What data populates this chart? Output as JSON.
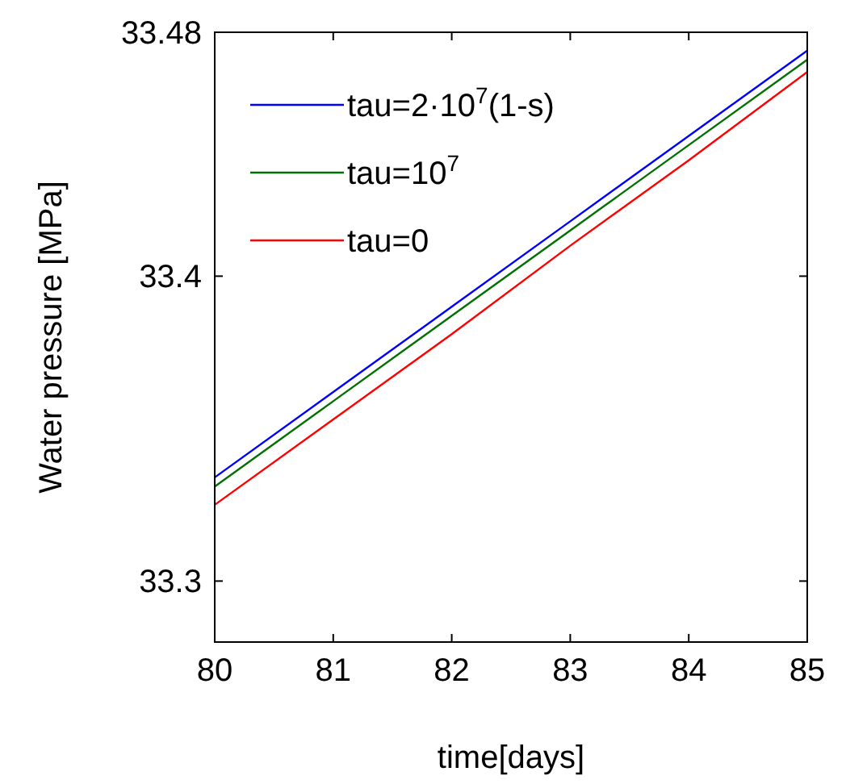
{
  "chart_data": {
    "type": "line",
    "xlabel": "time[days]",
    "ylabel": "Water pressure [MPa]",
    "x": [
      80,
      81,
      82,
      83,
      84,
      85
    ],
    "series": [
      {
        "name": "tau=2·10$^{7}$(1-s)",
        "color": "#0000ff",
        "values": [
          33.334,
          33.362,
          33.39,
          33.418,
          33.446,
          33.474
        ]
      },
      {
        "name": "tau=10$^{7}$",
        "color": "#007000",
        "values": [
          33.331,
          33.359,
          33.387,
          33.415,
          33.443,
          33.471
        ]
      },
      {
        "name": "tau=0",
        "color": "#ff0000",
        "values": [
          33.325,
          33.353,
          33.381,
          33.41,
          33.438,
          33.467
        ]
      }
    ],
    "xlim": [
      80,
      85
    ],
    "ylim": [
      33.28,
      33.48
    ],
    "xticks": [
      80,
      81,
      82,
      83,
      84,
      85
    ],
    "yticks": [
      33.3,
      33.4,
      33.48
    ],
    "grid": false,
    "legend": "top left",
    "marker": "none",
    "line_style": "solid"
  }
}
